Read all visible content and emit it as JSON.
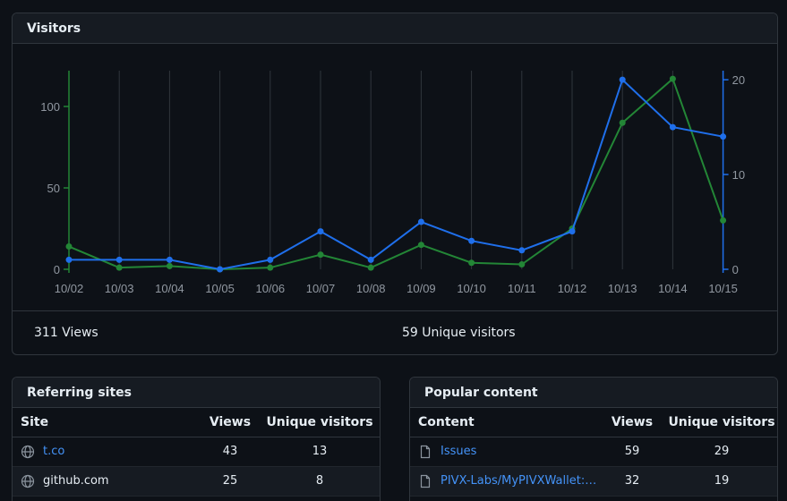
{
  "visitors_panel": {
    "title": "Visitors",
    "views_summary": "311 Views",
    "unique_summary": "59 Unique visitors"
  },
  "chart_data": {
    "type": "line",
    "x": [
      "10/02",
      "10/03",
      "10/04",
      "10/05",
      "10/06",
      "10/07",
      "10/08",
      "10/09",
      "10/10",
      "10/11",
      "10/12",
      "10/13",
      "10/14",
      "10/15"
    ],
    "series": [
      {
        "axis": "left",
        "color": "#238636",
        "values": [
          14,
          1,
          2,
          0,
          1,
          9,
          1,
          15,
          4,
          3,
          25,
          90,
          117,
          30
        ]
      },
      {
        "axis": "right",
        "color": "#1f6feb",
        "values": [
          1,
          1,
          1,
          0,
          1,
          4,
          1,
          5,
          3,
          2,
          4,
          20,
          15,
          14
        ]
      }
    ],
    "left_axis": {
      "ticks": [
        0,
        50,
        100
      ],
      "range": [
        0,
        122
      ],
      "color": "#238636"
    },
    "right_axis": {
      "ticks": [
        0,
        10,
        20
      ],
      "range": [
        0,
        20.2
      ],
      "color": "#1f6feb"
    },
    "grid": "vertical"
  },
  "referrers": {
    "title": "Referring sites",
    "headers": {
      "name": "Site",
      "views": "Views",
      "unique": "Unique visitors"
    },
    "rows": [
      {
        "icon": "globe-icon",
        "name": "t.co",
        "views": "43",
        "unique": "13",
        "link": true
      },
      {
        "icon": "globe-icon",
        "name": "github.com",
        "views": "25",
        "unique": "8",
        "link": false
      }
    ]
  },
  "popular": {
    "title": "Popular content",
    "headers": {
      "name": "Content",
      "views": "Views",
      "unique": "Unique visitors"
    },
    "rows": [
      {
        "icon": "file-icon",
        "name": "Issues",
        "views": "59",
        "unique": "29",
        "link": true
      },
      {
        "icon": "file-icon",
        "name": "PIVX-Labs/MyPIVXWallet: Secure, Simple, Open-Source",
        "views": "32",
        "unique": "19",
        "link": true
      }
    ]
  }
}
